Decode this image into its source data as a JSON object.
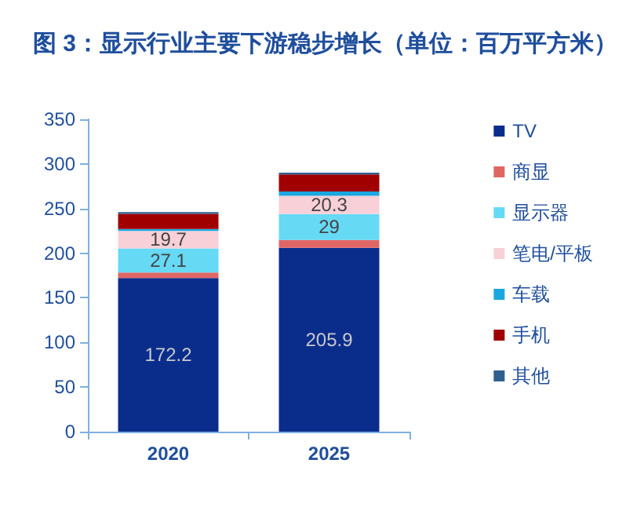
{
  "chart_data": {
    "type": "bar",
    "title": "图 3：显示行业主要下游稳步增长（单位：百万平方米）",
    "categories": [
      "2020",
      "2025"
    ],
    "stacked": true,
    "ylim": [
      0,
      350
    ],
    "yticks": [
      0,
      50,
      100,
      150,
      200,
      250,
      300,
      350
    ],
    "grid": false,
    "legend": "right",
    "series": [
      {
        "name": "TV",
        "color": "#0a2d8c",
        "values": [
          172.2,
          205.9
        ],
        "value_labels": [
          "172.2",
          "205.9"
        ]
      },
      {
        "name": "商显",
        "color": "#e06666",
        "values": [
          6,
          9
        ],
        "value_labels": [
          null,
          null
        ]
      },
      {
        "name": "显示器",
        "color": "#66d9f5",
        "values": [
          27.1,
          29
        ],
        "value_labels": [
          "27.1",
          "29"
        ]
      },
      {
        "name": "笔电/平板",
        "color": "#f8d0d8",
        "values": [
          19.7,
          20.3
        ],
        "value_labels": [
          "19.7",
          "20.3"
        ]
      },
      {
        "name": "车载",
        "color": "#1aa7e0",
        "values": [
          2,
          5
        ],
        "value_labels": [
          null,
          null
        ]
      },
      {
        "name": "手机",
        "color": "#a00000",
        "values": [
          17,
          19
        ],
        "value_labels": [
          null,
          null
        ]
      },
      {
        "name": "其他",
        "color": "#2e5f8f",
        "values": [
          2,
          2
        ],
        "value_labels": [
          null,
          null
        ]
      }
    ]
  }
}
